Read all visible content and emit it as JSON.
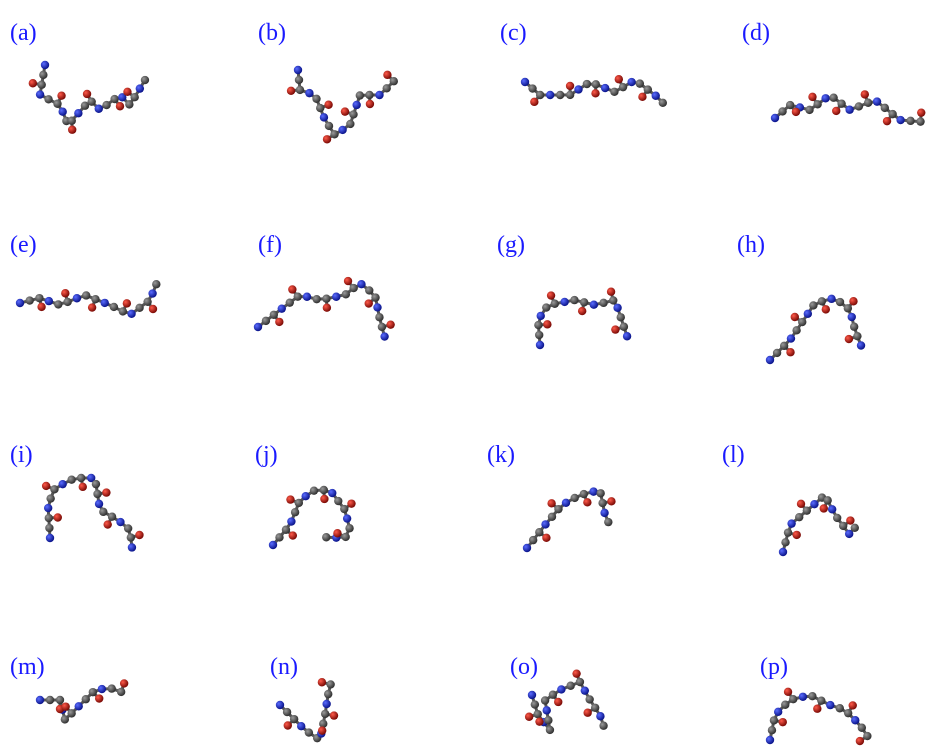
{
  "panels": [
    {
      "label": "(a)"
    },
    {
      "label": "(b)"
    },
    {
      "label": "(c)"
    },
    {
      "label": "(d)"
    },
    {
      "label": "(e)"
    },
    {
      "label": "(f)"
    },
    {
      "label": "(g)"
    },
    {
      "label": "(h)"
    },
    {
      "label": "(i)"
    },
    {
      "label": "(j)"
    },
    {
      "label": "(k)"
    },
    {
      "label": "(l)"
    },
    {
      "label": "(m)"
    },
    {
      "label": "(n)"
    },
    {
      "label": "(o)"
    },
    {
      "label": "(p)"
    }
  ]
}
